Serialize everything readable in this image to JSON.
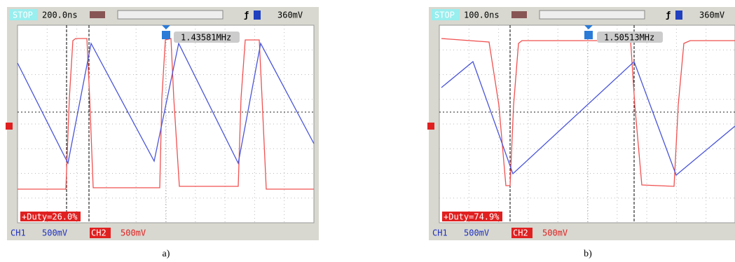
{
  "panels": [
    {
      "status": "STOP",
      "timebase": "200.0ns",
      "trigger_level": "360mV",
      "frequency": "1.43581MHz",
      "measurement": "+Duty=26.0%",
      "ch1_label": "CH1",
      "ch1_scale": "500mV",
      "ch2_label": "CH2",
      "ch2_scale": "500mV",
      "caption": "a)"
    },
    {
      "status": "STOP",
      "timebase": "100.0ns",
      "trigger_level": "360mV",
      "frequency": "1.50513MHz",
      "measurement": "+Duty=74.9%",
      "ch1_label": "CH1",
      "ch1_scale": "500mV",
      "ch2_label": "CH2",
      "ch2_scale": "500mV",
      "caption": "b)"
    }
  ]
}
